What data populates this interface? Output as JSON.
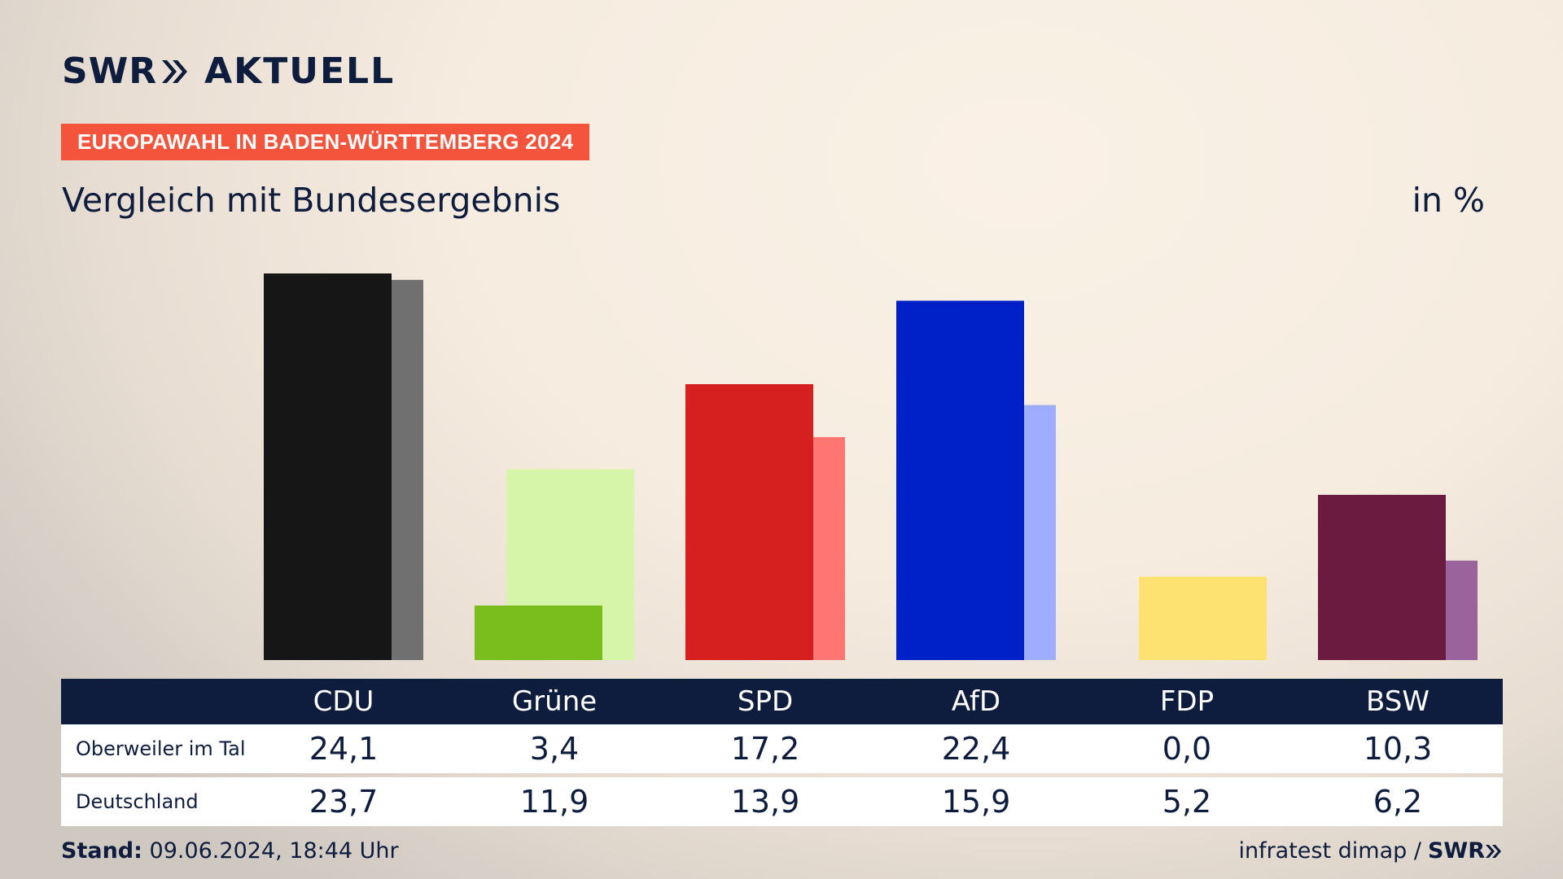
{
  "brand": {
    "name": "SWR",
    "product": "AKTUELL",
    "color": "#0e1c3d",
    "accent": "#f4533c"
  },
  "badge": "EUROPAWAHL IN BADEN-WÜRTTEMBERG 2024",
  "subtitle": "Vergleich mit Bundesergebnis",
  "unit": "in %",
  "table": {
    "rows": [
      {
        "label": "Oberweiler im Tal"
      },
      {
        "label": "Deutschland"
      }
    ]
  },
  "footer": {
    "stand_label": "Stand:",
    "stand_value": "09.06.2024, 18:44 Uhr",
    "source": "infratest dimap /",
    "source_brand": "SWR"
  },
  "chart_data": {
    "type": "bar",
    "categories": [
      "CDU",
      "Grüne",
      "SPD",
      "AfD",
      "FDP",
      "BSW"
    ],
    "series": [
      {
        "name": "Oberweiler im Tal",
        "values": [
          24.1,
          3.4,
          17.2,
          22.4,
          0.0,
          10.3
        ],
        "labels": [
          "24,1",
          "3,4",
          "17,2",
          "22,4",
          "0,0",
          "10,3"
        ],
        "colors": [
          "#161616",
          "#7abe1e",
          "#d61f1f",
          "#0021c8",
          "#fde272",
          "#6b1a40"
        ]
      },
      {
        "name": "Deutschland",
        "values": [
          23.7,
          11.9,
          13.9,
          15.9,
          5.2,
          6.2
        ],
        "labels": [
          "23,7",
          "11,9",
          "13,9",
          "15,9",
          "5,2",
          "6,2"
        ],
        "colors": [
          "#707070",
          "#d6f5a8",
          "#ff7572",
          "#9eadff",
          "#fde272",
          "#9a639b"
        ]
      }
    ],
    "ylim": [
      0,
      24.1
    ]
  }
}
